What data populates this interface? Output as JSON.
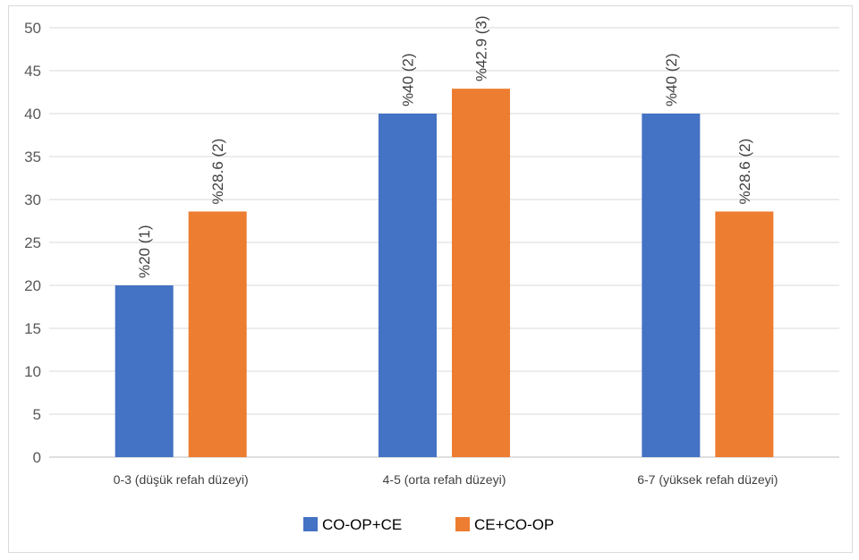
{
  "chart_data": {
    "type": "bar",
    "categories": [
      "0-3 (düşük refah düzeyi)",
      "4-5 (orta refah düzeyi)",
      "6-7 (yüksek refah düzeyi)"
    ],
    "series": [
      {
        "name": "CO-OP+CE",
        "color": "#4472C4",
        "values": [
          20,
          40,
          40
        ],
        "labels": [
          "%20 (1)",
          "%40 (2)",
          "%40 (2)"
        ]
      },
      {
        "name": "CE+CO-OP",
        "color": "#ED7D31",
        "values": [
          28.6,
          42.9,
          28.6
        ],
        "labels": [
          "%28.6 (2)",
          "%42.9 (3)",
          "%28.6 (2)"
        ]
      }
    ],
    "ylim": [
      0,
      50
    ],
    "yticks": [
      0,
      5,
      10,
      15,
      20,
      25,
      30,
      35,
      40,
      45,
      50
    ],
    "grid": true,
    "legend": "bottom",
    "data_label_orientation": "vertical"
  }
}
